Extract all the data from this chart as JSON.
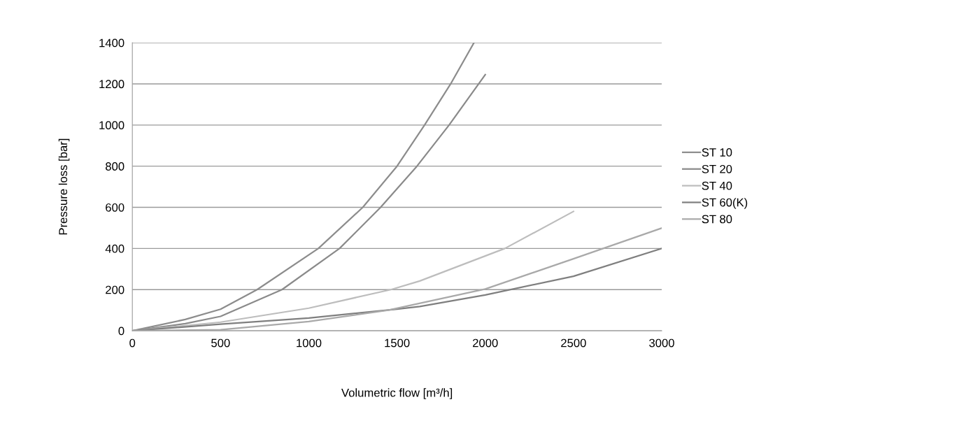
{
  "chart_data": {
    "type": "line",
    "xlabel": "Volumetric flow [m³/h]",
    "ylabel": "Pressure loss [bar]",
    "xlim": [
      0,
      3000
    ],
    "xticks": [
      0,
      500,
      1000,
      1500,
      2000,
      2500,
      3000
    ],
    "ylim": [
      0,
      1400
    ],
    "yticks": [
      0,
      200,
      400,
      600,
      800,
      1000,
      1200,
      1400
    ],
    "grid": "y",
    "legend": "right",
    "marker": "none",
    "line_style": "solid",
    "series": [
      {
        "name": "ST 10",
        "color": "#8c8c8c",
        "x": [
          0,
          300,
          500,
          707,
          1054,
          1306,
          1500,
          1656,
          1804,
          1936
        ],
        "values": [
          0,
          55,
          105,
          200,
          400,
          600,
          800,
          1000,
          1200,
          1400
        ]
      },
      {
        "name": "ST 20",
        "color": "#8a8a8a",
        "x": [
          0,
          300,
          500,
          848,
          1174,
          1407,
          1613,
          1795,
          2000
        ],
        "values": [
          0,
          35,
          70,
          200,
          400,
          600,
          800,
          1000,
          1245
        ]
      },
      {
        "name": "ST 40",
        "color": "#bdbdbd",
        "x": [
          0,
          500,
          1000,
          1465,
          1629,
          2111,
          2500
        ],
        "values": [
          0,
          42,
          110,
          200,
          242,
          400,
          580
        ]
      },
      {
        "name": "ST 60(K)",
        "color": "#7f7f7f",
        "x": [
          0,
          500,
          1000,
          1500,
          1629,
          2000,
          2500,
          3000
        ],
        "values": [
          0,
          32,
          62,
          105,
          118,
          174,
          265,
          400
        ]
      },
      {
        "name": "ST 80",
        "color": "#a9a9a9",
        "x": [
          0,
          500,
          1000,
          1450,
          2000,
          2500,
          3000
        ],
        "values": [
          0,
          5,
          45,
          100,
          203,
          350,
          499
        ]
      }
    ]
  }
}
